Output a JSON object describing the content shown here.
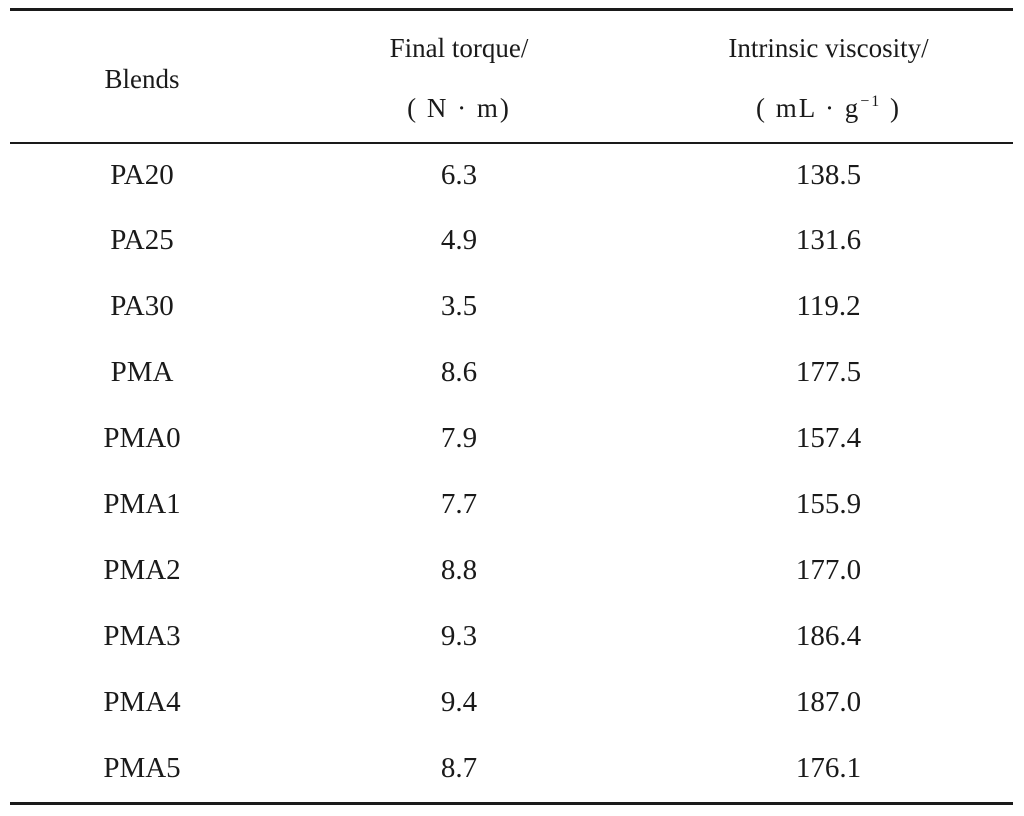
{
  "table": {
    "columns": {
      "blends": "Blends",
      "torque_line1": "Final torque/",
      "torque_line2": "( N · m)",
      "visc_line1": "Intrinsic viscosity/",
      "visc_line2_pre": "( mL · g",
      "visc_line2_sup": "−1",
      "visc_line2_post": " )"
    },
    "rows": [
      {
        "blend": "PA20",
        "torque": "6.3",
        "viscosity": "138.5"
      },
      {
        "blend": "PA25",
        "torque": "4.9",
        "viscosity": "131.6"
      },
      {
        "blend": "PA30",
        "torque": "3.5",
        "viscosity": "119.2"
      },
      {
        "blend": "PMA",
        "torque": "8.6",
        "viscosity": "177.5"
      },
      {
        "blend": "PMA0",
        "torque": "7.9",
        "viscosity": "157.4"
      },
      {
        "blend": "PMA1",
        "torque": "7.7",
        "viscosity": "155.9"
      },
      {
        "blend": "PMA2",
        "torque": "8.8",
        "viscosity": "177.0"
      },
      {
        "blend": "PMA3",
        "torque": "9.3",
        "viscosity": "186.4"
      },
      {
        "blend": "PMA4",
        "torque": "9.4",
        "viscosity": "187.0"
      },
      {
        "blend": "PMA5",
        "torque": "8.7",
        "viscosity": "176.1"
      }
    ]
  }
}
